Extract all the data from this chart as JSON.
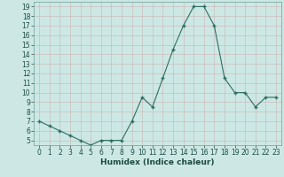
{
  "x": [
    0,
    1,
    2,
    3,
    4,
    5,
    6,
    7,
    8,
    9,
    10,
    11,
    12,
    13,
    14,
    15,
    16,
    17,
    18,
    19,
    20,
    21,
    22,
    23
  ],
  "y": [
    7,
    6.5,
    6,
    5.5,
    5,
    4.5,
    5,
    5,
    5,
    7,
    9.5,
    8.5,
    11.5,
    14.5,
    17,
    19,
    19,
    17,
    11.5,
    10,
    10,
    8.5,
    9.5,
    9.5
  ],
  "line_color": "#2d6e62",
  "marker_color": "#2d6e62",
  "bg_color": "#cde8e4",
  "grid_color_major": "#b8d8d4",
  "grid_color_minor": "#b8d8d4",
  "xlabel": "Humidex (Indice chaleur)",
  "ylim": [
    4.5,
    19.5
  ],
  "xlim": [
    -0.5,
    23.5
  ],
  "yticks": [
    5,
    6,
    7,
    8,
    9,
    10,
    11,
    12,
    13,
    14,
    15,
    16,
    17,
    18,
    19
  ],
  "xticks": [
    0,
    1,
    2,
    3,
    4,
    5,
    6,
    7,
    8,
    9,
    10,
    11,
    12,
    13,
    14,
    15,
    16,
    17,
    18,
    19,
    20,
    21,
    22,
    23
  ],
  "font_size": 5.5,
  "xlabel_fontsize": 6.5,
  "tick_color": "#1a4a42",
  "spine_color": "#7aaba4"
}
